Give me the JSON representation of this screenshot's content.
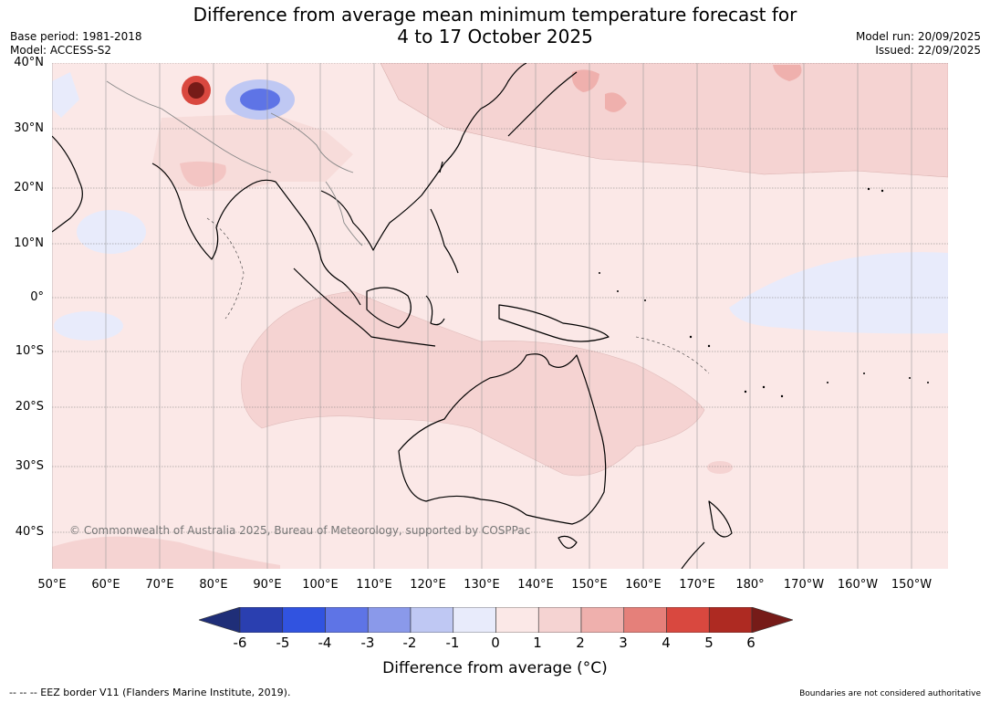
{
  "title": {
    "line1": "Difference from average mean minimum temperature forecast for",
    "line2": "4 to 17 October 2025"
  },
  "meta": {
    "base_period": "Base period: 1981-2018",
    "model": "Model: ACCESS-S2",
    "model_run": "Model run: 20/09/2025",
    "issued": "Issued: 22/09/2025"
  },
  "lat_labels": [
    "40°N",
    "30°N",
    "20°N",
    "10°N",
    "0°",
    "10°S",
    "20°S",
    "30°S",
    "40°S"
  ],
  "lon_labels": [
    "50°E",
    "60°E",
    "70°E",
    "80°E",
    "90°E",
    "100°E",
    "110°E",
    "120°E",
    "130°E",
    "140°E",
    "150°E",
    "160°E",
    "170°E",
    "180°",
    "170°W",
    "160°W",
    "150°W"
  ],
  "copyright": "© Commonwealth of Australia 2025, Bureau of Meteorology, supported by COSPPac",
  "colorbar": {
    "ticks": [
      "-6",
      "-5",
      "-4",
      "-3",
      "-2",
      "-1",
      "0",
      "1",
      "2",
      "3",
      "4",
      "5",
      "6"
    ],
    "title": "Difference from average (°C)",
    "colors": [
      "#1f2e78",
      "#2a3fb0",
      "#3153e0",
      "#5e74e6",
      "#8a99ea",
      "#bfc8f3",
      "#e8ebfb",
      "#fbe8e7",
      "#f5d3d2",
      "#efb0ad",
      "#e5807a",
      "#d9483f",
      "#ae2a22",
      "#761b18"
    ]
  },
  "footer": {
    "eez": "-- -- -- EEZ border V11 (Flanders Marine Institute, 2019).",
    "boundaries": "Boundaries are not considered authoritative"
  }
}
